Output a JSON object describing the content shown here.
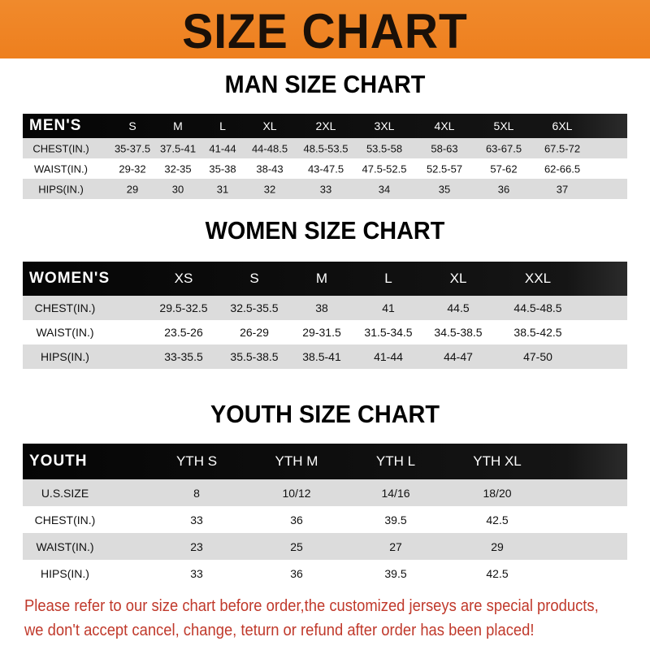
{
  "banner_title": "SIZE CHART",
  "colors": {
    "banner": "#ef842a",
    "header_row": "#0a0a0a",
    "shaded_row": "#dcdcdc",
    "note_text": "#c0392b"
  },
  "men": {
    "title": "MAN SIZE CHART",
    "headers": [
      "MEN'S",
      "S",
      "M",
      "L",
      "XL",
      "2XL",
      "3XL",
      "4XL",
      "5XL",
      "6XL"
    ],
    "rows": [
      [
        "CHEST(IN.)",
        "35-37.5",
        "37.5-41",
        "41-44",
        "44-48.5",
        "48.5-53.5",
        "53.5-58",
        "58-63",
        "63-67.5",
        "67.5-72"
      ],
      [
        "WAIST(IN.)",
        "29-32",
        "32-35",
        "35-38",
        "38-43",
        "43-47.5",
        "47.5-52.5",
        "52.5-57",
        "57-62",
        "62-66.5"
      ],
      [
        "HIPS(IN.)",
        "29",
        "30",
        "31",
        "32",
        "33",
        "34",
        "35",
        "36",
        "37"
      ]
    ]
  },
  "women": {
    "title": "WOMEN SIZE CHART",
    "headers": [
      "WOMEN'S",
      "XS",
      "S",
      "M",
      "L",
      "XL",
      "XXL"
    ],
    "rows": [
      [
        "CHEST(IN.)",
        "29.5-32.5",
        "32.5-35.5",
        "38",
        "41",
        "44.5",
        "44.5-48.5"
      ],
      [
        "WAIST(IN.)",
        "23.5-26",
        "26-29",
        "29-31.5",
        "31.5-34.5",
        "34.5-38.5",
        "38.5-42.5"
      ],
      [
        "HIPS(IN.)",
        "33-35.5",
        "35.5-38.5",
        "38.5-41",
        "41-44",
        "44-47",
        "47-50"
      ]
    ]
  },
  "youth": {
    "title": "YOUTH SIZE CHART",
    "headers": [
      "YOUTH",
      "YTH S",
      "YTH M",
      "YTH L",
      "YTH XL"
    ],
    "rows": [
      [
        "U.S.SIZE",
        "8",
        "10/12",
        "14/16",
        "18/20"
      ],
      [
        "CHEST(IN.)",
        "33",
        "36",
        "39.5",
        "42.5"
      ],
      [
        "WAIST(IN.)",
        "23",
        "25",
        "27",
        "29"
      ],
      [
        "HIPS(IN.)",
        "33",
        "36",
        "39.5",
        "42.5"
      ]
    ]
  },
  "note": {
    "line1": "Please refer to our size chart before order,the customized jerseys are special products,",
    "line2": "we don't accept cancel, change, teturn or refund after order has been placed!"
  }
}
